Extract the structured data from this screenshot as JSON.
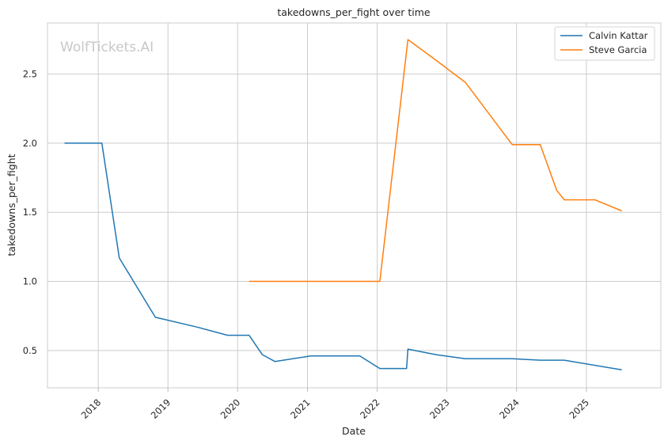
{
  "chart_data": {
    "type": "line",
    "title": "takedowns_per_fight over time",
    "xlabel": "Date",
    "ylabel": "takedowns_per_fight",
    "watermark": "WolfTickets.AI",
    "x_ticks": [
      "2018",
      "2019",
      "2020",
      "2021",
      "2022",
      "2023",
      "2024",
      "2025"
    ],
    "y_ticks": [
      "0.5",
      "1.0",
      "1.5",
      "2.0",
      "2.5"
    ],
    "y_tick_values": [
      0.5,
      1.0,
      1.5,
      2.0,
      2.5
    ],
    "xlim": [
      "2017-04-10",
      "2026-01-26"
    ],
    "ylim": [
      0.23,
      2.87
    ],
    "grid": true,
    "legend_position": "top-right",
    "series": [
      {
        "name": "Calvin Kattar",
        "color": "#1f77b4",
        "points": [
          [
            "2017-07-08",
            2.0
          ],
          [
            "2018-01-20",
            2.0
          ],
          [
            "2018-04-21",
            1.17
          ],
          [
            "2018-10-27",
            0.74
          ],
          [
            "2019-06-01",
            0.67
          ],
          [
            "2019-11-09",
            0.61
          ],
          [
            "2020-03-01",
            0.61
          ],
          [
            "2020-05-09",
            0.47
          ],
          [
            "2020-07-15",
            0.42
          ],
          [
            "2021-01-17",
            0.46
          ],
          [
            "2021-10-02",
            0.46
          ],
          [
            "2022-01-15",
            0.37
          ],
          [
            "2022-06-04",
            0.37
          ],
          [
            "2022-06-11",
            0.51
          ],
          [
            "2022-11-05",
            0.47
          ],
          [
            "2023-04-08",
            0.44
          ],
          [
            "2023-12-09",
            0.44
          ],
          [
            "2024-05-04",
            0.43
          ],
          [
            "2024-09-07",
            0.43
          ],
          [
            "2025-07-05",
            0.36
          ]
        ]
      },
      {
        "name": "Steve Garcia",
        "color": "#ff7f0e",
        "points": [
          [
            "2020-03-01",
            1.0
          ],
          [
            "2022-01-15",
            1.0
          ],
          [
            "2022-06-11",
            2.75
          ],
          [
            "2022-11-05",
            2.6
          ],
          [
            "2023-04-08",
            2.44
          ],
          [
            "2023-12-09",
            1.99
          ],
          [
            "2024-05-04",
            1.99
          ],
          [
            "2024-07-29",
            1.66
          ],
          [
            "2024-09-07",
            1.59
          ],
          [
            "2025-02-15",
            1.59
          ],
          [
            "2025-07-05",
            1.51
          ]
        ]
      }
    ]
  }
}
